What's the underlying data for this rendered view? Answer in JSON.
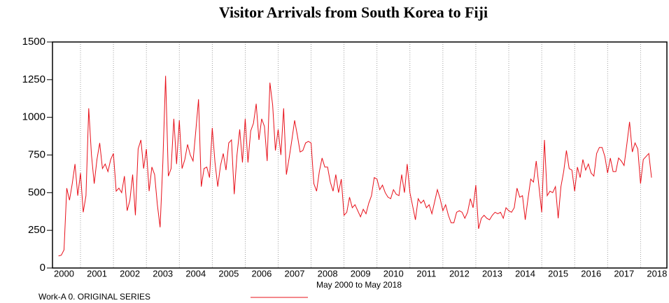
{
  "chart_data": {
    "type": "line",
    "title": "Visitor Arrivals from South Korea to Fiji",
    "subtitle": "May 2000  to May 2018",
    "xlim": [
      2000.15,
      2018.8
    ],
    "xticks": [
      2000,
      2001,
      2002,
      2003,
      2004,
      2005,
      2006,
      2007,
      2008,
      2009,
      2010,
      2011,
      2012,
      2013,
      2014,
      2015,
      2016,
      2017,
      2018
    ],
    "ylim": [
      0,
      1500
    ],
    "yticks": [
      0,
      250,
      500,
      750,
      1000,
      1250,
      1500
    ],
    "grid": true,
    "x": [
      "2000-05",
      "2000-06",
      "2000-07",
      "2000-08",
      "2000-09",
      "2000-10",
      "2000-11",
      "2000-12",
      "2001-01",
      "2001-02",
      "2001-03",
      "2001-04",
      "2001-05",
      "2001-06",
      "2001-07",
      "2001-08",
      "2001-09",
      "2001-10",
      "2001-11",
      "2001-12",
      "2002-01",
      "2002-02",
      "2002-03",
      "2002-04",
      "2002-05",
      "2002-06",
      "2002-07",
      "2002-08",
      "2002-09",
      "2002-10",
      "2002-11",
      "2002-12",
      "2003-01",
      "2003-02",
      "2003-03",
      "2003-04",
      "2003-05",
      "2003-06",
      "2003-07",
      "2003-08",
      "2003-09",
      "2003-10",
      "2003-11",
      "2003-12",
      "2004-01",
      "2004-02",
      "2004-03",
      "2004-04",
      "2004-05",
      "2004-06",
      "2004-07",
      "2004-08",
      "2004-09",
      "2004-10",
      "2004-11",
      "2004-12",
      "2005-01",
      "2005-02",
      "2005-03",
      "2005-04",
      "2005-05",
      "2005-06",
      "2005-07",
      "2005-08",
      "2005-09",
      "2005-10",
      "2005-11",
      "2005-12",
      "2006-01",
      "2006-02",
      "2006-03",
      "2006-04",
      "2006-05",
      "2006-06",
      "2006-07",
      "2006-08",
      "2006-09",
      "2006-10",
      "2006-11",
      "2006-12",
      "2007-01",
      "2007-02",
      "2007-03",
      "2007-04",
      "2007-05",
      "2007-06",
      "2007-07",
      "2007-08",
      "2007-09",
      "2007-10",
      "2007-11",
      "2007-12",
      "2008-01",
      "2008-02",
      "2008-03",
      "2008-04",
      "2008-05",
      "2008-06",
      "2008-07",
      "2008-08",
      "2008-09",
      "2008-10",
      "2008-11",
      "2008-12",
      "2009-01",
      "2009-02",
      "2009-03",
      "2009-04",
      "2009-05",
      "2009-06",
      "2009-07",
      "2009-08",
      "2009-09",
      "2009-10",
      "2009-11",
      "2009-12",
      "2010-01",
      "2010-02",
      "2010-03",
      "2010-04",
      "2010-05",
      "2010-06",
      "2010-07",
      "2010-08",
      "2010-09",
      "2010-10",
      "2010-11",
      "2010-12",
      "2011-01",
      "2011-02",
      "2011-03",
      "2011-04",
      "2011-05",
      "2011-06",
      "2011-07",
      "2011-08",
      "2011-09",
      "2011-10",
      "2011-11",
      "2011-12",
      "2012-01",
      "2012-02",
      "2012-03",
      "2012-04",
      "2012-05",
      "2012-06",
      "2012-07",
      "2012-08",
      "2012-09",
      "2012-10",
      "2012-11",
      "2012-12",
      "2013-01",
      "2013-02",
      "2013-03",
      "2013-04",
      "2013-05",
      "2013-06",
      "2013-07",
      "2013-08",
      "2013-09",
      "2013-10",
      "2013-11",
      "2013-12",
      "2014-01",
      "2014-02",
      "2014-03",
      "2014-04",
      "2014-05",
      "2014-06",
      "2014-07",
      "2014-08",
      "2014-09",
      "2014-10",
      "2014-11",
      "2014-12",
      "2015-01",
      "2015-02",
      "2015-03",
      "2015-04",
      "2015-05",
      "2015-06",
      "2015-07",
      "2015-08",
      "2015-09",
      "2015-10",
      "2015-11",
      "2015-12",
      "2016-01",
      "2016-02",
      "2016-03",
      "2016-04",
      "2016-05",
      "2016-06",
      "2016-07",
      "2016-08",
      "2016-09",
      "2016-10",
      "2016-11",
      "2016-12",
      "2017-01",
      "2017-02",
      "2017-03",
      "2017-04",
      "2017-05",
      "2017-06",
      "2017-07",
      "2017-08",
      "2017-09",
      "2017-10",
      "2017-11",
      "2017-12",
      "2018-01",
      "2018-02",
      "2018-03",
      "2018-04",
      "2018-05"
    ],
    "series": [
      {
        "name": "Work-A 0.  ORIGINAL SERIES",
        "color": "#e8101a",
        "values": [
          80,
          85,
          120,
          530,
          450,
          560,
          690,
          480,
          630,
          370,
          480,
          1060,
          750,
          560,
          720,
          830,
          660,
          690,
          640,
          720,
          760,
          510,
          530,
          500,
          610,
          380,
          450,
          620,
          350,
          790,
          850,
          660,
          790,
          510,
          670,
          620,
          420,
          270,
          700,
          1275,
          610,
          660,
          990,
          690,
          980,
          660,
          720,
          820,
          750,
          710,
          910,
          1120,
          540,
          660,
          670,
          600,
          930,
          700,
          540,
          680,
          760,
          650,
          830,
          850,
          490,
          750,
          920,
          700,
          990,
          700,
          910,
          960,
          1090,
          850,
          990,
          940,
          710,
          1230,
          1080,
          780,
          920,
          750,
          1060,
          620,
          730,
          850,
          980,
          880,
          770,
          780,
          830,
          840,
          830,
          560,
          510,
          640,
          730,
          670,
          670,
          570,
          510,
          620,
          500,
          590,
          350,
          370,
          470,
          400,
          420,
          380,
          340,
          390,
          360,
          430,
          480,
          600,
          590,
          520,
          550,
          500,
          470,
          460,
          520,
          490,
          480,
          620,
          500,
          690,
          500,
          410,
          320,
          460,
          430,
          450,
          400,
          420,
          360,
          440,
          520,
          460,
          380,
          420,
          350,
          300,
          300,
          370,
          380,
          370,
          330,
          370,
          460,
          400,
          550,
          260,
          330,
          350,
          330,
          320,
          350,
          370,
          360,
          370,
          330,
          400,
          380,
          370,
          400,
          530,
          470,
          480,
          320,
          460,
          590,
          570,
          710,
          540,
          370,
          850,
          480,
          510,
          500,
          540,
          330,
          540,
          640,
          780,
          660,
          650,
          510,
          670,
          600,
          720,
          650,
          690,
          630,
          610,
          760,
          800,
          800,
          740,
          630,
          730,
          640,
          640,
          730,
          710,
          680,
          820,
          970,
          770,
          830,
          790,
          560,
          720,
          740,
          760,
          600
        ]
      }
    ]
  }
}
